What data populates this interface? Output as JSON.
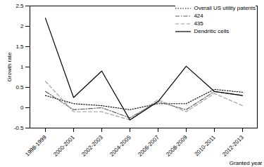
{
  "chart_data": {
    "type": "line",
    "x_label": "Granted year",
    "y_label": "Growth rate",
    "categories": [
      "1998-1999",
      "2000-2001",
      "2002-2003",
      "2004-2005",
      "2006-2007",
      "2008-2009",
      "2010-2011",
      "2012-2013"
    ],
    "series": [
      {
        "name": "Overall US utility patents",
        "color": "#000000",
        "line_style": "dotted",
        "values": [
          0.3,
          0.1,
          0.05,
          -0.05,
          0.1,
          0.1,
          0.45,
          0.38
        ]
      },
      {
        "name": "424",
        "color": "#555555",
        "line_style": "dashdot",
        "values": [
          0.4,
          -0.05,
          0.0,
          -0.25,
          0.15,
          -0.05,
          0.4,
          0.3
        ]
      },
      {
        "name": "435",
        "color": "#999999",
        "line_style": "dashed",
        "values": [
          0.65,
          -0.1,
          -0.1,
          -0.3,
          0.2,
          -0.1,
          0.35,
          0.05
        ]
      },
      {
        "name": "Dendritic cells",
        "color": "#000000",
        "line_style": "solid",
        "values": [
          2.2,
          0.25,
          0.9,
          -0.3,
          0.15,
          1.02,
          0.4,
          0.3
        ]
      }
    ],
    "ylim": [
      -0.5,
      2.5
    ],
    "yticks": [
      -0.5,
      0,
      0.5,
      1,
      1.5,
      2,
      2.5
    ],
    "legend": "top-right",
    "grid": false
  }
}
